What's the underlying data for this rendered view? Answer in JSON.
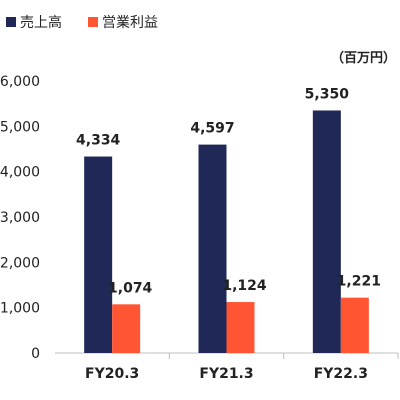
{
  "chart_data": {
    "type": "bar",
    "categories": [
      "FY20.3",
      "FY21.3",
      "FY22.3"
    ],
    "series": [
      {
        "name": "売上高",
        "values": [
          4334,
          4597,
          5350
        ],
        "labels": [
          "4,334",
          "4,597",
          "5,350"
        ],
        "color": "#1f2856"
      },
      {
        "name": "営業利益",
        "values": [
          1074,
          1124,
          1221
        ],
        "labels": [
          "1,074",
          "1,124",
          "1,221"
        ],
        "color": "#ff5533"
      }
    ],
    "unit_label": "（百万円）",
    "ylim": [
      0,
      6000
    ],
    "yticks": [
      0,
      1000,
      2000,
      3000,
      4000,
      5000,
      6000
    ],
    "ytick_labels": [
      "0",
      "1,000",
      "2,000",
      "3,000",
      "4,000",
      "5,000",
      "6,000"
    ],
    "grid": false,
    "legend": "top-left"
  }
}
